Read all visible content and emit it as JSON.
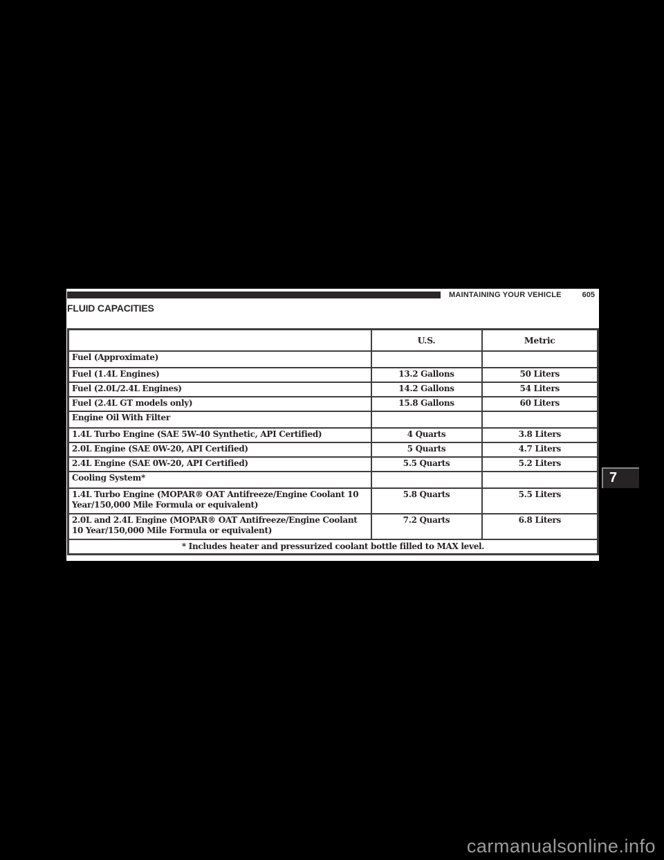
{
  "header": {
    "chapter_title": "MAINTAINING YOUR VEHICLE",
    "page_number": "605"
  },
  "section_title": "FLUID CAPACITIES",
  "chapter_tab": "7",
  "watermark": "carmanualsonline.info",
  "table": {
    "headers": [
      "",
      "U.S.",
      "Metric"
    ],
    "rows": [
      {
        "type": "section",
        "label": "Fuel (Approximate)",
        "us": "",
        "metric": ""
      },
      {
        "type": "data",
        "label": "Fuel (1.4L Engines)",
        "us": "13.2 Gallons",
        "metric": "50 Liters"
      },
      {
        "type": "data",
        "label": "Fuel (2.0L/2.4L Engines)",
        "us": "14.2 Gallons",
        "metric": "54 Liters"
      },
      {
        "type": "data",
        "label": "Fuel (2.4L GT models only)",
        "us": "15.8 Gallons",
        "metric": "60 Liters"
      },
      {
        "type": "section",
        "label": "Engine Oil With Filter",
        "us": "",
        "metric": ""
      },
      {
        "type": "data",
        "label": "1.4L Turbo Engine (SAE 5W-40 Synthetic, API Certified)",
        "us": "4 Quarts",
        "metric": "3.8 Liters"
      },
      {
        "type": "data",
        "label": "2.0L Engine (SAE 0W-20, API Certified)",
        "us": "5 Quarts",
        "metric": "4.7 Liters"
      },
      {
        "type": "data",
        "label": "2.4L Engine (SAE 0W-20, API Certified)",
        "us": "5.5 Quarts",
        "metric": "5.2 Liters"
      },
      {
        "type": "section",
        "label": "Cooling System*",
        "us": "",
        "metric": ""
      },
      {
        "type": "tall",
        "label": "1.4L Turbo Engine (MOPAR® OAT Antifreeze/Engine Coolant 10 Year/150,000 Mile Formula or equivalent)",
        "us": "5.8 Quarts",
        "metric": "5.5 Liters"
      },
      {
        "type": "tall",
        "label": "2.0L and 2.4L Engine (MOPAR® OAT Antifreeze/Engine Coolant 10 Year/150,000 Mile Formula or equivalent)",
        "us": "7.2 Quarts",
        "metric": "6.8 Liters"
      }
    ],
    "footnote": "* Includes heater and pressurized coolant bottle filled to MAX level."
  },
  "colors": {
    "canvas_bg": "#000000",
    "page_bg": "#ffffff",
    "ink": "#262122",
    "table_border": "#413d3e",
    "tab_bg": "#272223",
    "tab_border": "#8b8b8b",
    "watermark_gray": "#9c9c9c"
  }
}
